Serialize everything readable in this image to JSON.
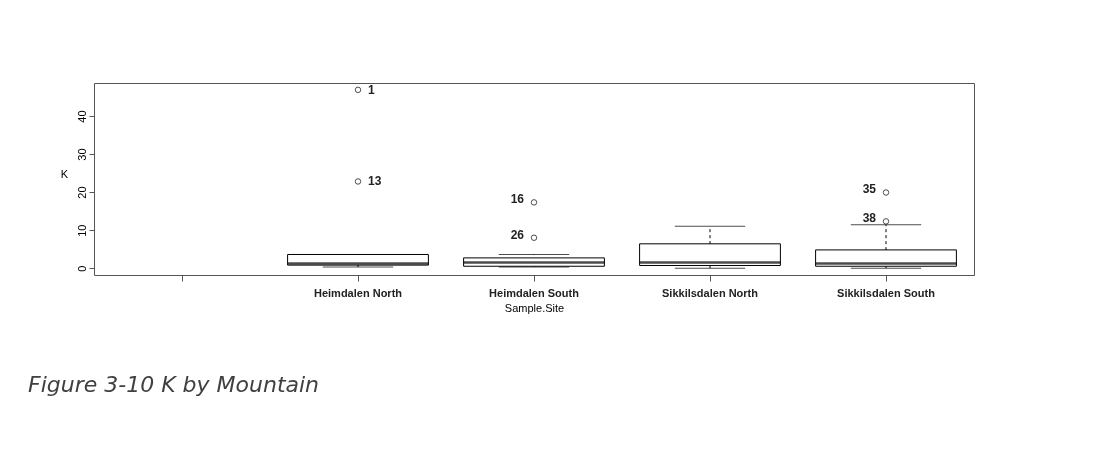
{
  "chart_data": {
    "type": "box",
    "xlabel": "Sample.Site",
    "ylabel": "K",
    "categories": [
      null,
      "Heimdalen North",
      "Heimdalen South",
      "Sikkilsdalen North",
      "Sikkilsdalen South"
    ],
    "boxes": [
      null,
      {
        "low": 0.3,
        "q1": 0.8,
        "median": 1.2,
        "q3": 3.6,
        "high": 3.6,
        "outliers": [
          46.9,
          22.8
        ]
      },
      {
        "low": 0.3,
        "q1": 0.5,
        "median": 1.5,
        "q3": 2.7,
        "high": 3.6,
        "outliers": [
          17.3,
          8
        ]
      },
      {
        "low": 0,
        "q1": 0.7,
        "median": 1.5,
        "q3": 6.4,
        "high": 11
      },
      {
        "low": 0,
        "q1": 0.5,
        "median": 1.2,
        "q3": 4.8,
        "high": 11.4,
        "outliers": [
          19.9,
          12.3
        ]
      }
    ],
    "ylim": [
      -1.8,
      48.7
    ],
    "yticks": [
      0,
      10,
      20,
      30,
      40
    ],
    "grid": false,
    "annotations": [
      "1",
      "13",
      "16",
      "26",
      "35",
      "38",
      "Figure 3-10 K by Mountain"
    ]
  }
}
